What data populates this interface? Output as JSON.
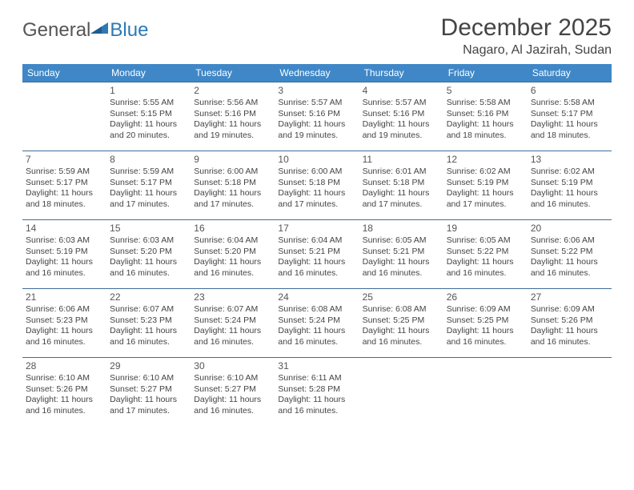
{
  "brand": {
    "part1": "General",
    "part2": "Blue"
  },
  "title": "December 2025",
  "location": "Nagaro, Al Jazirah, Sudan",
  "colors": {
    "header_bg": "#3f87c7",
    "rule": "#3f6d99",
    "brand_blue": "#2d79b5",
    "text": "#444"
  },
  "weekdays": [
    "Sunday",
    "Monday",
    "Tuesday",
    "Wednesday",
    "Thursday",
    "Friday",
    "Saturday"
  ],
  "first_weekday_index": 1,
  "days": [
    {
      "n": 1,
      "sunrise": "5:55 AM",
      "sunset": "5:15 PM",
      "daylight": "11 hours and 20 minutes."
    },
    {
      "n": 2,
      "sunrise": "5:56 AM",
      "sunset": "5:16 PM",
      "daylight": "11 hours and 19 minutes."
    },
    {
      "n": 3,
      "sunrise": "5:57 AM",
      "sunset": "5:16 PM",
      "daylight": "11 hours and 19 minutes."
    },
    {
      "n": 4,
      "sunrise": "5:57 AM",
      "sunset": "5:16 PM",
      "daylight": "11 hours and 19 minutes."
    },
    {
      "n": 5,
      "sunrise": "5:58 AM",
      "sunset": "5:16 PM",
      "daylight": "11 hours and 18 minutes."
    },
    {
      "n": 6,
      "sunrise": "5:58 AM",
      "sunset": "5:17 PM",
      "daylight": "11 hours and 18 minutes."
    },
    {
      "n": 7,
      "sunrise": "5:59 AM",
      "sunset": "5:17 PM",
      "daylight": "11 hours and 18 minutes."
    },
    {
      "n": 8,
      "sunrise": "5:59 AM",
      "sunset": "5:17 PM",
      "daylight": "11 hours and 17 minutes."
    },
    {
      "n": 9,
      "sunrise": "6:00 AM",
      "sunset": "5:18 PM",
      "daylight": "11 hours and 17 minutes."
    },
    {
      "n": 10,
      "sunrise": "6:00 AM",
      "sunset": "5:18 PM",
      "daylight": "11 hours and 17 minutes."
    },
    {
      "n": 11,
      "sunrise": "6:01 AM",
      "sunset": "5:18 PM",
      "daylight": "11 hours and 17 minutes."
    },
    {
      "n": 12,
      "sunrise": "6:02 AM",
      "sunset": "5:19 PM",
      "daylight": "11 hours and 17 minutes."
    },
    {
      "n": 13,
      "sunrise": "6:02 AM",
      "sunset": "5:19 PM",
      "daylight": "11 hours and 16 minutes."
    },
    {
      "n": 14,
      "sunrise": "6:03 AM",
      "sunset": "5:19 PM",
      "daylight": "11 hours and 16 minutes."
    },
    {
      "n": 15,
      "sunrise": "6:03 AM",
      "sunset": "5:20 PM",
      "daylight": "11 hours and 16 minutes."
    },
    {
      "n": 16,
      "sunrise": "6:04 AM",
      "sunset": "5:20 PM",
      "daylight": "11 hours and 16 minutes."
    },
    {
      "n": 17,
      "sunrise": "6:04 AM",
      "sunset": "5:21 PM",
      "daylight": "11 hours and 16 minutes."
    },
    {
      "n": 18,
      "sunrise": "6:05 AM",
      "sunset": "5:21 PM",
      "daylight": "11 hours and 16 minutes."
    },
    {
      "n": 19,
      "sunrise": "6:05 AM",
      "sunset": "5:22 PM",
      "daylight": "11 hours and 16 minutes."
    },
    {
      "n": 20,
      "sunrise": "6:06 AM",
      "sunset": "5:22 PM",
      "daylight": "11 hours and 16 minutes."
    },
    {
      "n": 21,
      "sunrise": "6:06 AM",
      "sunset": "5:23 PM",
      "daylight": "11 hours and 16 minutes."
    },
    {
      "n": 22,
      "sunrise": "6:07 AM",
      "sunset": "5:23 PM",
      "daylight": "11 hours and 16 minutes."
    },
    {
      "n": 23,
      "sunrise": "6:07 AM",
      "sunset": "5:24 PM",
      "daylight": "11 hours and 16 minutes."
    },
    {
      "n": 24,
      "sunrise": "6:08 AM",
      "sunset": "5:24 PM",
      "daylight": "11 hours and 16 minutes."
    },
    {
      "n": 25,
      "sunrise": "6:08 AM",
      "sunset": "5:25 PM",
      "daylight": "11 hours and 16 minutes."
    },
    {
      "n": 26,
      "sunrise": "6:09 AM",
      "sunset": "5:25 PM",
      "daylight": "11 hours and 16 minutes."
    },
    {
      "n": 27,
      "sunrise": "6:09 AM",
      "sunset": "5:26 PM",
      "daylight": "11 hours and 16 minutes."
    },
    {
      "n": 28,
      "sunrise": "6:10 AM",
      "sunset": "5:26 PM",
      "daylight": "11 hours and 16 minutes."
    },
    {
      "n": 29,
      "sunrise": "6:10 AM",
      "sunset": "5:27 PM",
      "daylight": "11 hours and 17 minutes."
    },
    {
      "n": 30,
      "sunrise": "6:10 AM",
      "sunset": "5:27 PM",
      "daylight": "11 hours and 16 minutes."
    },
    {
      "n": 31,
      "sunrise": "6:11 AM",
      "sunset": "5:28 PM",
      "daylight": "11 hours and 16 minutes."
    }
  ],
  "labels": {
    "sunrise": "Sunrise:",
    "sunset": "Sunset:",
    "daylight": "Daylight:"
  }
}
